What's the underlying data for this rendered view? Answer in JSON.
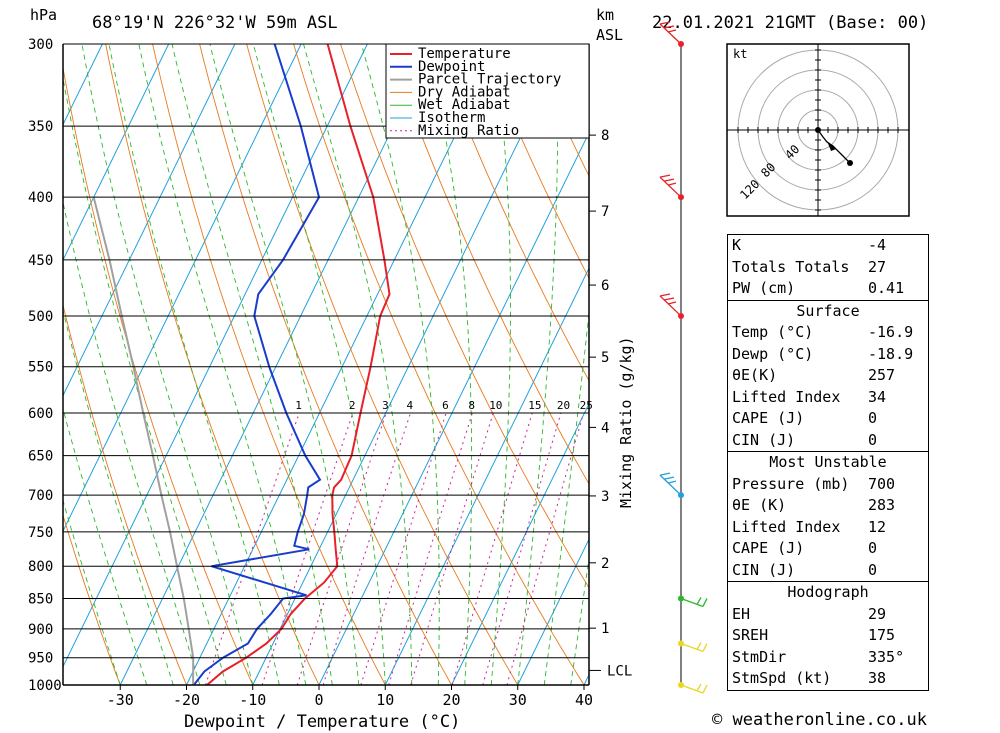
{
  "header": {
    "pressure_unit": "hPa",
    "location": "68°19'N  226°32'W  59m  ASL",
    "km_label": "km",
    "asl_label": "ASL",
    "datetime": "22.01.2021  21GMT  (Base: 00)"
  },
  "axes": {
    "xlabel": "Dewpoint / Temperature (°C)",
    "ylabel_right": "Mixing Ratio (g/kg)",
    "lcl_label": "LCL"
  },
  "legend": [
    "Temperature",
    "Dewpoint",
    "Parcel Trajectory",
    "Dry Adiabat",
    "Wet Adiabat",
    "Isotherm",
    "Mixing Ratio"
  ],
  "colors": {
    "temperature": "#e8202a",
    "dewpoint": "#1a3ccc",
    "parcel": "#a0a0a0",
    "dry_adiabat": "#e87a1e",
    "wet_adiabat": "#2ab82a",
    "isotherm": "#22a0dd",
    "mixing_ratio": "#cc2299"
  },
  "chart_data": {
    "type": "line",
    "title": "68°19'N  226°32'W  59m  ASL",
    "xlabel": "Dewpoint / Temperature (°C)",
    "ylabel": "hPa",
    "xlim": [
      -40,
      40
    ],
    "ylim": [
      1000,
      300
    ],
    "y_scale": "log",
    "x_ticks": [
      -30,
      -20,
      -10,
      0,
      10,
      20,
      30,
      40
    ],
    "pressure_levels": [
      300,
      350,
      400,
      450,
      500,
      550,
      600,
      650,
      700,
      750,
      800,
      850,
      900,
      950,
      1000
    ],
    "km_ticks": [
      1,
      2,
      3,
      4,
      5,
      6,
      7,
      8
    ],
    "mixing_ratio_labels": [
      "1",
      "2",
      "3",
      "4",
      "6",
      "8",
      "10",
      "15",
      "20",
      "25"
    ],
    "series": [
      {
        "name": "Temperature",
        "points": [
          [
            1000,
            -16.9
          ],
          [
            975,
            -15.5
          ],
          [
            950,
            -13
          ],
          [
            925,
            -11
          ],
          [
            900,
            -9.8
          ],
          [
            875,
            -9.5
          ],
          [
            850,
            -8.5
          ],
          [
            825,
            -6.8
          ],
          [
            800,
            -6
          ],
          [
            775,
            -7.5
          ],
          [
            750,
            -9
          ],
          [
            725,
            -10.6
          ],
          [
            700,
            -12
          ],
          [
            690,
            -12.3
          ],
          [
            680,
            -11.8
          ],
          [
            650,
            -12
          ],
          [
            600,
            -13.8
          ],
          [
            550,
            -15.7
          ],
          [
            500,
            -18
          ],
          [
            480,
            -18.2
          ],
          [
            450,
            -21.5
          ],
          [
            400,
            -27.8
          ],
          [
            350,
            -36.5
          ],
          [
            300,
            -46
          ]
        ]
      },
      {
        "name": "Dewpoint",
        "points": [
          [
            1000,
            -18.9
          ],
          [
            975,
            -18.3
          ],
          [
            950,
            -16.5
          ],
          [
            925,
            -13.8
          ],
          [
            900,
            -13.5
          ],
          [
            875,
            -12.5
          ],
          [
            850,
            -11.8
          ],
          [
            845,
            -8.5
          ],
          [
            800,
            -25
          ],
          [
            775,
            -11.5
          ],
          [
            770,
            -14
          ],
          [
            750,
            -14.5
          ],
          [
            725,
            -14.9
          ],
          [
            700,
            -15.8
          ],
          [
            690,
            -16.2
          ],
          [
            680,
            -15
          ],
          [
            650,
            -19
          ],
          [
            600,
            -25
          ],
          [
            550,
            -31
          ],
          [
            500,
            -37
          ],
          [
            480,
            -38
          ],
          [
            450,
            -36.8
          ],
          [
            400,
            -36
          ],
          [
            350,
            -44
          ],
          [
            300,
            -54
          ]
        ]
      },
      {
        "name": "Parcel Trajectory",
        "points": [
          [
            1000,
            -19
          ],
          [
            950,
            -21
          ],
          [
            900,
            -23.8
          ],
          [
            850,
            -26.8
          ],
          [
            800,
            -30.2
          ],
          [
            750,
            -33.8
          ],
          [
            700,
            -37.8
          ],
          [
            650,
            -42
          ],
          [
            600,
            -46.6
          ],
          [
            550,
            -51.5
          ],
          [
            500,
            -57
          ],
          [
            450,
            -63
          ],
          [
            400,
            -70
          ]
        ]
      }
    ],
    "wind_barbs": [
      {
        "pressure": 300,
        "color": "#e8202a"
      },
      {
        "pressure": 400,
        "color": "#e8202a"
      },
      {
        "pressure": 500,
        "color": "#e8202a"
      },
      {
        "pressure": 700,
        "color": "#22a0dd"
      },
      {
        "pressure": 850,
        "color": "#2ab82a"
      },
      {
        "pressure": 925,
        "color": "#e8d820"
      },
      {
        "pressure": 1000,
        "color": "#e8d820"
      }
    ],
    "hodograph": {
      "unit_label": "kt",
      "ring_labels": [
        "40",
        "80",
        "120"
      ],
      "points": [
        [
          0,
          0
        ],
        [
          5,
          -7
        ],
        [
          9,
          -12
        ],
        [
          15,
          -16
        ],
        [
          32,
          -33
        ]
      ]
    }
  },
  "indices": {
    "block1": [
      {
        "label": "K",
        "value": "-4"
      },
      {
        "label": "Totals Totals",
        "value": "27"
      },
      {
        "label": "PW (cm)",
        "value": "0.41"
      }
    ],
    "surface_title": "Surface",
    "surface": [
      {
        "label": "Temp (°C)",
        "value": "-16.9"
      },
      {
        "label": "Dewp (°C)",
        "value": "-18.9"
      },
      {
        "label": "θE(K)",
        "value": "257"
      },
      {
        "label": "Lifted Index",
        "value": "34"
      },
      {
        "label": "CAPE (J)",
        "value": "0"
      },
      {
        "label": "CIN (J)",
        "value": "0"
      }
    ],
    "mu_title": "Most Unstable",
    "most_unstable": [
      {
        "label": "Pressure (mb)",
        "value": "700"
      },
      {
        "label": "θE (K)",
        "value": "283"
      },
      {
        "label": "Lifted Index",
        "value": "12"
      },
      {
        "label": "CAPE (J)",
        "value": "0"
      },
      {
        "label": "CIN (J)",
        "value": "0"
      }
    ],
    "hodo_title": "Hodograph",
    "hodograph": [
      {
        "label": "EH",
        "value": "29"
      },
      {
        "label": "SREH",
        "value": "175"
      },
      {
        "label": "StmDir",
        "value": "335°"
      },
      {
        "label": "StmSpd (kt)",
        "value": "38"
      }
    ]
  },
  "footer": {
    "site": "© weatheronline.co.uk"
  }
}
